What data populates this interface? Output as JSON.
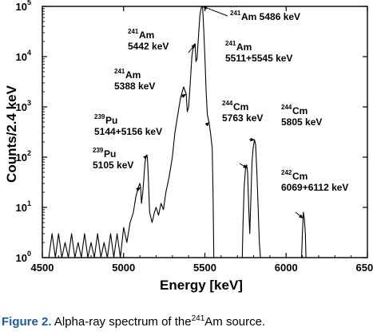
{
  "chart_data": {
    "type": "line",
    "xlabel": "Energy [keV]",
    "ylabel": "Counts/2.4 keV",
    "xlim": [
      4500,
      6500
    ],
    "ylim_log10": [
      0,
      5
    ],
    "log_y": true,
    "grid": false,
    "x_ticks": [
      4500,
      5000,
      5500,
      6000,
      6500
    ],
    "x_tick_labels": [
      "4500",
      "5000",
      "5500",
      "6000",
      "6500"
    ],
    "y_tick_labels": [
      {
        "base": "10",
        "exp": "0"
      },
      {
        "base": "10",
        "exp": "1"
      },
      {
        "base": "10",
        "exp": "2"
      },
      {
        "base": "10",
        "exp": "3"
      },
      {
        "base": "10",
        "exp": "4"
      },
      {
        "base": "10",
        "exp": "5"
      }
    ],
    "series": [
      {
        "color": "#000000",
        "points": [
          [
            4540,
            1
          ],
          [
            4560,
            3
          ],
          [
            4580,
            1
          ],
          [
            4600,
            3
          ],
          [
            4620,
            1
          ],
          [
            4640,
            2
          ],
          [
            4660,
            1
          ],
          [
            4680,
            3
          ],
          [
            4700,
            1
          ],
          [
            4720,
            2
          ],
          [
            4740,
            1
          ],
          [
            4760,
            3
          ],
          [
            4780,
            1
          ],
          [
            4800,
            2
          ],
          [
            4820,
            1
          ],
          [
            4840,
            3
          ],
          [
            4860,
            1
          ],
          [
            4880,
            2
          ],
          [
            4900,
            1
          ],
          [
            4920,
            3
          ],
          [
            4940,
            1
          ],
          [
            4960,
            3
          ],
          [
            4980,
            1
          ],
          [
            5000,
            4
          ],
          [
            5020,
            2
          ],
          [
            5040,
            5
          ],
          [
            5060,
            8
          ],
          [
            5075,
            16
          ],
          [
            5090,
            25
          ],
          [
            5100,
            30
          ],
          [
            5105,
            25
          ],
          [
            5110,
            12
          ],
          [
            5118,
            20
          ],
          [
            5125,
            40
          ],
          [
            5132,
            80
          ],
          [
            5140,
            110
          ],
          [
            5146,
            100
          ],
          [
            5152,
            40
          ],
          [
            5160,
            8
          ],
          [
            5175,
            5
          ],
          [
            5190,
            8
          ],
          [
            5200,
            10
          ],
          [
            5215,
            7
          ],
          [
            5230,
            12
          ],
          [
            5245,
            9
          ],
          [
            5260,
            20
          ],
          [
            5280,
            40
          ],
          [
            5300,
            100
          ],
          [
            5315,
            300
          ],
          [
            5330,
            600
          ],
          [
            5350,
            1500
          ],
          [
            5370,
            2500
          ],
          [
            5385,
            1800
          ],
          [
            5392,
            800
          ],
          [
            5400,
            1000
          ],
          [
            5410,
            3000
          ],
          [
            5420,
            10000
          ],
          [
            5430,
            17000
          ],
          [
            5440,
            18000
          ],
          [
            5445,
            8000
          ],
          [
            5452,
            9000
          ],
          [
            5462,
            30000
          ],
          [
            5470,
            70000
          ],
          [
            5480,
            100000
          ],
          [
            5486,
            95000
          ],
          [
            5492,
            40000
          ],
          [
            5500,
            10000
          ],
          [
            5508,
            2000
          ],
          [
            5515,
            700
          ],
          [
            5525,
            500
          ],
          [
            5535,
            300
          ],
          [
            5545,
            150
          ],
          [
            5550,
            20
          ],
          [
            5555,
            1
          ],
          [
            5730,
            1
          ],
          [
            5735,
            5
          ],
          [
            5742,
            25
          ],
          [
            5750,
            60
          ],
          [
            5757,
            70
          ],
          [
            5763,
            50
          ],
          [
            5770,
            10
          ],
          [
            5776,
            3
          ],
          [
            5783,
            15
          ],
          [
            5790,
            80
          ],
          [
            5797,
            150
          ],
          [
            5805,
            220
          ],
          [
            5812,
            180
          ],
          [
            5820,
            50
          ],
          [
            5828,
            10
          ],
          [
            5835,
            2
          ],
          [
            5842,
            1
          ],
          [
            6095,
            1
          ],
          [
            6100,
            3
          ],
          [
            6106,
            8
          ],
          [
            6112,
            6
          ],
          [
            6118,
            3
          ],
          [
            6122,
            1
          ]
        ]
      }
    ],
    "annotations": [
      {
        "iso_mass": "241",
        "lines": [
          "Am 5486 keV"
        ],
        "x": 5486,
        "y": 100000
      },
      {
        "iso_mass": "241",
        "lines": [
          "Am",
          "5442 keV"
        ],
        "x": 5442,
        "y": 18000
      },
      {
        "iso_mass": "241",
        "lines": [
          "Am",
          "5511+5545 keV"
        ],
        "x": 5528,
        "y": 500
      },
      {
        "iso_mass": "241",
        "lines": [
          "Am",
          "5388 keV"
        ],
        "x": 5385,
        "y": 1800
      },
      {
        "iso_mass": "244",
        "lines": [
          "Cm",
          "5763 keV"
        ],
        "x": 5763,
        "y": 60
      },
      {
        "iso_mass": "244",
        "lines": [
          "Cm",
          "5805 keV"
        ],
        "x": 5808,
        "y": 220
      },
      {
        "iso_mass": "239",
        "lines": [
          "Pu",
          "5144+5156 keV"
        ],
        "x": 5148,
        "y": 110
      },
      {
        "iso_mass": "239",
        "lines": [
          "Pu",
          "5105 keV"
        ],
        "x": 5105,
        "y": 25
      },
      {
        "iso_mass": "242",
        "lines": [
          "Cm",
          "6069+6112 keV"
        ],
        "x": 6106,
        "y": 6
      }
    ]
  },
  "caption": {
    "label": "Figure 2.",
    "text_before": "Alpha-ray spectrum of the",
    "superscript": "241",
    "text_after": "Am source."
  }
}
